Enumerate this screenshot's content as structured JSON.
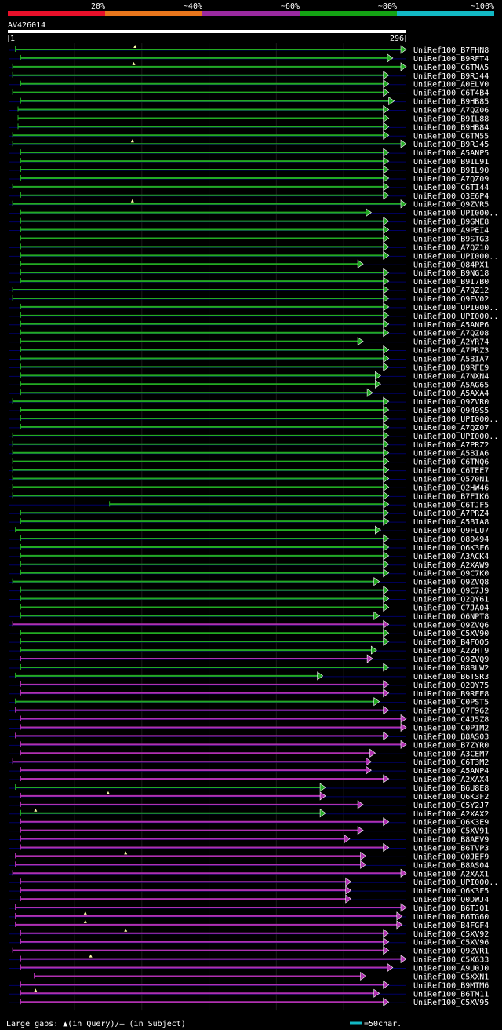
{
  "legend": {
    "pct_labels": [
      "20%",
      "~40%",
      "~60%",
      "~80%",
      "~100%"
    ],
    "pct_colors": [
      "#e8102a",
      "#e8761c",
      "#9a2aa0",
      "#14a314",
      "#12b8c4"
    ]
  },
  "query": {
    "name": "AV426014",
    "start_label": "1",
    "end_label": "296"
  },
  "footer": {
    "gaps_text": "Large gaps: ▲(in Query)/— (in Subject)",
    "scale_text": "=50char."
  },
  "chart_data": {
    "type": "alignment",
    "query_length": 296,
    "colors": {
      "green": "#22aa22",
      "magenta": "#b030b0",
      "gap_marker": "#ffffaa",
      "grid": "#1a1a1a",
      "faint_line": "#000066"
    },
    "hits": [
      {
        "name": "UniRef100_B7FHN8",
        "c": "green",
        "s": 6,
        "e": 296,
        "q": [
          95
        ]
      },
      {
        "name": "UniRef100_B9RFT4",
        "c": "green",
        "s": 10,
        "e": 286
      },
      {
        "name": "UniRef100_C6TMA5",
        "c": "green",
        "s": 4,
        "e": 296,
        "q": [
          94
        ]
      },
      {
        "name": "UniRef100_B9RJ44",
        "c": "green",
        "s": 4,
        "e": 283
      },
      {
        "name": "UniRef100_A0ELV0",
        "c": "green",
        "s": 10,
        "e": 283
      },
      {
        "name": "UniRef100_C6T4B4",
        "c": "green",
        "s": 4,
        "e": 283
      },
      {
        "name": "UniRef100_B9HB85",
        "c": "green",
        "s": 10,
        "e": 287
      },
      {
        "name": "UniRef100_A7QZ06",
        "c": "green",
        "s": 8,
        "e": 283
      },
      {
        "name": "UniRef100_B9IL88",
        "c": "green",
        "s": 8,
        "e": 283
      },
      {
        "name": "UniRef100_B9HB84",
        "c": "green",
        "s": 8,
        "e": 283
      },
      {
        "name": "UniRef100_C6TM55",
        "c": "green",
        "s": 4,
        "e": 283
      },
      {
        "name": "UniRef100_B9RJ45",
        "c": "green",
        "s": 4,
        "e": 296,
        "q": [
          93
        ]
      },
      {
        "name": "UniRef100_A5ANP5",
        "c": "green",
        "s": 10,
        "e": 283
      },
      {
        "name": "UniRef100_B9IL91",
        "c": "green",
        "s": 10,
        "e": 283
      },
      {
        "name": "UniRef100_B9IL90",
        "c": "green",
        "s": 10,
        "e": 283
      },
      {
        "name": "UniRef100_A7QZ09",
        "c": "green",
        "s": 10,
        "e": 283
      },
      {
        "name": "UniRef100_C6TI44",
        "c": "green",
        "s": 4,
        "e": 283
      },
      {
        "name": "UniRef100_Q3E6P4",
        "c": "green",
        "s": 10,
        "e": 283
      },
      {
        "name": "UniRef100_Q9ZVR5",
        "c": "green",
        "s": 4,
        "e": 296,
        "q": [
          93
        ]
      },
      {
        "name": "UniRef100_UPI000..",
        "c": "green",
        "s": 10,
        "e": 270
      },
      {
        "name": "UniRef100_B9GME8",
        "c": "green",
        "s": 10,
        "e": 283
      },
      {
        "name": "UniRef100_A9PEI4",
        "c": "green",
        "s": 10,
        "e": 283
      },
      {
        "name": "UniRef100_B9STG3",
        "c": "green",
        "s": 10,
        "e": 283
      },
      {
        "name": "UniRef100_A7QZ10",
        "c": "green",
        "s": 10,
        "e": 283
      },
      {
        "name": "UniRef100_UPI000..",
        "c": "green",
        "s": 10,
        "e": 283
      },
      {
        "name": "UniRef100_Q84PX1",
        "c": "green",
        "s": 10,
        "e": 264
      },
      {
        "name": "UniRef100_B9NG18",
        "c": "green",
        "s": 10,
        "e": 283
      },
      {
        "name": "UniRef100_B9I7B0",
        "c": "green",
        "s": 10,
        "e": 283
      },
      {
        "name": "UniRef100_A7QZ12",
        "c": "green",
        "s": 4,
        "e": 283
      },
      {
        "name": "UniRef100_Q9FV02",
        "c": "green",
        "s": 4,
        "e": 283
      },
      {
        "name": "UniRef100_UPI000..",
        "c": "green",
        "s": 10,
        "e": 283
      },
      {
        "name": "UniRef100_UPI000..",
        "c": "green",
        "s": 10,
        "e": 283
      },
      {
        "name": "UniRef100_A5ANP6",
        "c": "green",
        "s": 10,
        "e": 283
      },
      {
        "name": "UniRef100_A7QZ08",
        "c": "green",
        "s": 10,
        "e": 283
      },
      {
        "name": "UniRef100_A2YR74",
        "c": "green",
        "s": 10,
        "e": 264
      },
      {
        "name": "UniRef100_A7PRZ3",
        "c": "green",
        "s": 10,
        "e": 283
      },
      {
        "name": "UniRef100_A5BIA7",
        "c": "green",
        "s": 10,
        "e": 283
      },
      {
        "name": "UniRef100_B9RFE9",
        "c": "green",
        "s": 10,
        "e": 283
      },
      {
        "name": "UniRef100_A7NXN4",
        "c": "green",
        "s": 10,
        "e": 277
      },
      {
        "name": "UniRef100_A5AG65",
        "c": "green",
        "s": 10,
        "e": 277
      },
      {
        "name": "UniRef100_A5AXA4",
        "c": "green",
        "s": 10,
        "e": 271
      },
      {
        "name": "UniRef100_Q9ZVR0",
        "c": "green",
        "s": 4,
        "e": 283
      },
      {
        "name": "UniRef100_Q949S5",
        "c": "green",
        "s": 10,
        "e": 283
      },
      {
        "name": "UniRef100_UPI000..",
        "c": "green",
        "s": 10,
        "e": 283
      },
      {
        "name": "UniRef100_A7QZ07",
        "c": "green",
        "s": 10,
        "e": 283
      },
      {
        "name": "UniRef100_UPI000..",
        "c": "green",
        "s": 4,
        "e": 283
      },
      {
        "name": "UniRef100_A7PRZ2",
        "c": "green",
        "s": 4,
        "e": 283
      },
      {
        "name": "UniRef100_A5BIA6",
        "c": "green",
        "s": 4,
        "e": 283
      },
      {
        "name": "UniRef100_C6TNQ6",
        "c": "green",
        "s": 4,
        "e": 283
      },
      {
        "name": "UniRef100_C6TEE7",
        "c": "green",
        "s": 4,
        "e": 283
      },
      {
        "name": "UniRef100_Q570N1",
        "c": "green",
        "s": 4,
        "e": 283
      },
      {
        "name": "UniRef100_Q2HW46",
        "c": "green",
        "s": 4,
        "e": 283
      },
      {
        "name": "UniRef100_B7FIK6",
        "c": "green",
        "s": 4,
        "e": 283
      },
      {
        "name": "UniRef100_C6TJF5",
        "c": "green",
        "s": 76,
        "e": 283
      },
      {
        "name": "UniRef100_A7PRZ4",
        "c": "green",
        "s": 10,
        "e": 283
      },
      {
        "name": "UniRef100_A5BIA8",
        "c": "green",
        "s": 10,
        "e": 283
      },
      {
        "name": "UniRef100_Q9FLU7",
        "c": "green",
        "s": 6,
        "e": 277
      },
      {
        "name": "UniRef100_O80494",
        "c": "green",
        "s": 10,
        "e": 283
      },
      {
        "name": "UniRef100_Q6K3F6",
        "c": "green",
        "s": 10,
        "e": 283
      },
      {
        "name": "UniRef100_A3ACK4",
        "c": "green",
        "s": 10,
        "e": 283
      },
      {
        "name": "UniRef100_A2XAW9",
        "c": "green",
        "s": 10,
        "e": 283
      },
      {
        "name": "UniRef100_Q9C7K0",
        "c": "green",
        "s": 10,
        "e": 283
      },
      {
        "name": "UniRef100_Q9ZVQ8",
        "c": "green",
        "s": 4,
        "e": 276
      },
      {
        "name": "UniRef100_Q9C7J9",
        "c": "green",
        "s": 10,
        "e": 283
      },
      {
        "name": "UniRef100_Q2QY61",
        "c": "green",
        "s": 10,
        "e": 283
      },
      {
        "name": "UniRef100_C7JA04",
        "c": "green",
        "s": 10,
        "e": 283
      },
      {
        "name": "UniRef100_Q6NPT8",
        "c": "green",
        "s": 10,
        "e": 276
      },
      {
        "name": "UniRef100_Q9ZVQ6",
        "c": "magenta",
        "s": 4,
        "e": 283
      },
      {
        "name": "UniRef100_C5XV90",
        "c": "green",
        "s": 10,
        "e": 283
      },
      {
        "name": "UniRef100_B4FQQ5",
        "c": "green",
        "s": 10,
        "e": 283
      },
      {
        "name": "UniRef100_A2ZHT9",
        "c": "green",
        "s": 10,
        "e": 274
      },
      {
        "name": "UniRef100_Q9ZVQ9",
        "c": "magenta",
        "s": 10,
        "e": 271
      },
      {
        "name": "UniRef100_B8BLW2",
        "c": "green",
        "s": 10,
        "e": 283
      },
      {
        "name": "UniRef100_B6TSR3",
        "c": "green",
        "s": 6,
        "e": 234
      },
      {
        "name": "UniRef100_Q2QY75",
        "c": "magenta",
        "s": 10,
        "e": 283
      },
      {
        "name": "UniRef100_B9RFE8",
        "c": "magenta",
        "s": 10,
        "e": 283
      },
      {
        "name": "UniRef100_C0PST5",
        "c": "green",
        "s": 6,
        "e": 276
      },
      {
        "name": "UniRef100_Q7F962",
        "c": "magenta",
        "s": 6,
        "e": 283
      },
      {
        "name": "UniRef100_C4J5Z8",
        "c": "magenta",
        "s": 10,
        "e": 296
      },
      {
        "name": "UniRef100_C0PIM2",
        "c": "magenta",
        "s": 10,
        "e": 296
      },
      {
        "name": "UniRef100_B8AS03",
        "c": "magenta",
        "s": 6,
        "e": 283
      },
      {
        "name": "UniRef100_B7ZYR0",
        "c": "magenta",
        "s": 10,
        "e": 296
      },
      {
        "name": "UniRef100_A3CEM7",
        "c": "magenta",
        "s": 10,
        "e": 273
      },
      {
        "name": "UniRef100_C6T3M2",
        "c": "magenta",
        "s": 4,
        "e": 270
      },
      {
        "name": "UniRef100_A5ANP4",
        "c": "magenta",
        "s": 10,
        "e": 270
      },
      {
        "name": "UniRef100_A2XAX4",
        "c": "magenta",
        "s": 10,
        "e": 283
      },
      {
        "name": "UniRef100_B6U8E8",
        "c": "green",
        "s": 6,
        "e": 236
      },
      {
        "name": "UniRef100_Q6K3F2",
        "c": "magenta",
        "s": 10,
        "e": 236,
        "q": [
          75
        ]
      },
      {
        "name": "UniRef100_C5Y2J7",
        "c": "magenta",
        "s": 10,
        "e": 264
      },
      {
        "name": "UniRef100_A2XAX2",
        "c": "green",
        "s": 10,
        "e": 236,
        "q": [
          21
        ]
      },
      {
        "name": "UniRef100_Q6K3E9",
        "c": "magenta",
        "s": 10,
        "e": 283
      },
      {
        "name": "UniRef100_C5XV91",
        "c": "magenta",
        "s": 10,
        "e": 264
      },
      {
        "name": "UniRef100_B8AEV9",
        "c": "magenta",
        "s": 10,
        "e": 254
      },
      {
        "name": "UniRef100_B6TVP3",
        "c": "magenta",
        "s": 10,
        "e": 283
      },
      {
        "name": "UniRef100_Q0JEF9",
        "c": "magenta",
        "s": 6,
        "e": 266,
        "q": [
          88
        ]
      },
      {
        "name": "UniRef100_B8AS04",
        "c": "magenta",
        "s": 6,
        "e": 266
      },
      {
        "name": "UniRef100_A2XAX1",
        "c": "magenta",
        "s": 4,
        "e": 296
      },
      {
        "name": "UniRef100_UPI000..",
        "c": "magenta",
        "s": 10,
        "e": 255
      },
      {
        "name": "UniRef100_Q6K3F5",
        "c": "magenta",
        "s": 10,
        "e": 255
      },
      {
        "name": "UniRef100_Q0DWJ4",
        "c": "magenta",
        "s": 10,
        "e": 255
      },
      {
        "name": "UniRef100_B6TJQ1",
        "c": "magenta",
        "s": 6,
        "e": 296
      },
      {
        "name": "UniRef100_B6TG60",
        "c": "magenta",
        "s": 6,
        "e": 293,
        "q": [
          58
        ]
      },
      {
        "name": "UniRef100_B4FGF4",
        "c": "magenta",
        "s": 6,
        "e": 293,
        "q": [
          58
        ]
      },
      {
        "name": "UniRef100_C5XV92",
        "c": "magenta",
        "s": 10,
        "e": 283,
        "q": [
          88
        ]
      },
      {
        "name": "UniRef100_C5XV96",
        "c": "magenta",
        "s": 10,
        "e": 283
      },
      {
        "name": "UniRef100_Q9ZVR1",
        "c": "magenta",
        "s": 4,
        "e": 283
      },
      {
        "name": "UniRef100_C5X633",
        "c": "magenta",
        "s": 10,
        "e": 296,
        "q": [
          62
        ]
      },
      {
        "name": "UniRef100_A9U0J0",
        "c": "magenta",
        "s": 10,
        "e": 286
      },
      {
        "name": "UniRef100_C5XXN1",
        "c": "magenta",
        "s": 20,
        "e": 266
      },
      {
        "name": "UniRef100_B9MTM6",
        "c": "magenta",
        "s": 10,
        "e": 283
      },
      {
        "name": "UniRef100_B6TM11",
        "c": "magenta",
        "s": 10,
        "e": 276,
        "q": [
          21
        ]
      },
      {
        "name": "UniRef100_C5XV95",
        "c": "magenta",
        "s": 10,
        "e": 283
      }
    ]
  }
}
